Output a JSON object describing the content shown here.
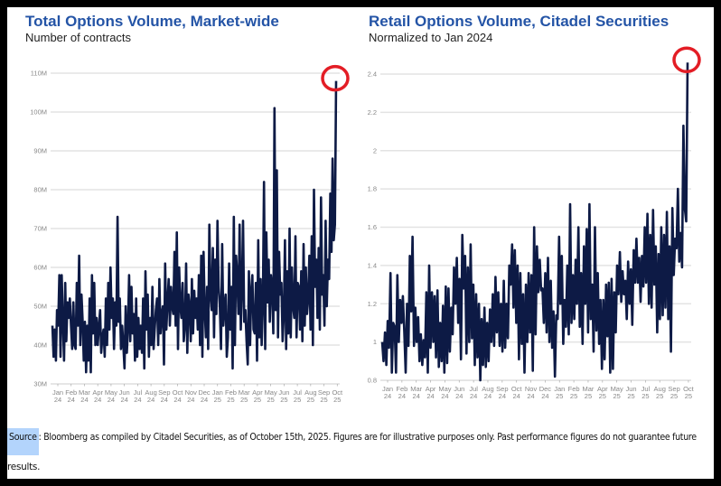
{
  "chart_data": [
    {
      "type": "line",
      "title": "Total Options Volume, Market-wide",
      "subtitle": "Number of contracts",
      "xlabel": "",
      "ylabel": "",
      "ylim": [
        30,
        110
      ],
      "y_unit": "M",
      "y_ticks": [
        "30M",
        "40M",
        "50M",
        "60M",
        "70M",
        "80M",
        "90M",
        "100M",
        "110M"
      ],
      "x_ticks": [
        [
          "Jan",
          "24"
        ],
        [
          "Feb",
          "24"
        ],
        [
          "Mar",
          "24"
        ],
        [
          "Apr",
          "24"
        ],
        [
          "May",
          "24"
        ],
        [
          "Jun",
          "24"
        ],
        [
          "Jul",
          "24"
        ],
        [
          "Aug",
          "24"
        ],
        [
          "Sep",
          "24"
        ],
        [
          "Oct",
          "24"
        ],
        [
          "Nov",
          "24"
        ],
        [
          "Dec",
          "24"
        ],
        [
          "Jan",
          "25"
        ],
        [
          "Feb",
          "25"
        ],
        [
          "Mar",
          "25"
        ],
        [
          "Apr",
          "25"
        ],
        [
          "May",
          "25"
        ],
        [
          "Jun",
          "25"
        ],
        [
          "Jul",
          "25"
        ],
        [
          "Aug",
          "25"
        ],
        [
          "Sep",
          "25"
        ],
        [
          "Oct",
          "25"
        ]
      ],
      "grid": true,
      "highlight": "circle around final peak (Oct 25)",
      "series": [
        {
          "name": "Total Options Volume",
          "color": "#0d1a45",
          "values": [
            45,
            37,
            44,
            36,
            49,
            45,
            58,
            37,
            58,
            46,
            36,
            56,
            41,
            51,
            47,
            52,
            45,
            39,
            51,
            40,
            39,
            56,
            45,
            63,
            40,
            53,
            46,
            36,
            46,
            33,
            45,
            36,
            52,
            33,
            58,
            43,
            56,
            40,
            47,
            40,
            45,
            49,
            38,
            42,
            44,
            37,
            52,
            40,
            56,
            44,
            60,
            47,
            52,
            39,
            51,
            45,
            73,
            46,
            52,
            39,
            45,
            40,
            34,
            50,
            38,
            44,
            58,
            41,
            55,
            43,
            48,
            36,
            52,
            37,
            47,
            39,
            45,
            38,
            52,
            34,
            59,
            44,
            53,
            37,
            47,
            40,
            55,
            39,
            44,
            49,
            52,
            40,
            57,
            43,
            48,
            50,
            35,
            61,
            44,
            51,
            57,
            45,
            55,
            50,
            48,
            64,
            45,
            69,
            39,
            60,
            50,
            47,
            56,
            41,
            45,
            61,
            38,
            53,
            50,
            41,
            57,
            43,
            54,
            47,
            52,
            44,
            58,
            40,
            63,
            37,
            64,
            49,
            42,
            55,
            39,
            71,
            53,
            49,
            65,
            42,
            62,
            48,
            72,
            55,
            50,
            39,
            66,
            45,
            50,
            53,
            37,
            42,
            61,
            44,
            55,
            34,
            73,
            40,
            63,
            58,
            48,
            71,
            44,
            55,
            72,
            46,
            49,
            41,
            35,
            59,
            40,
            54,
            58,
            44,
            43,
            56,
            36,
            67,
            42,
            57,
            40,
            50,
            82,
            39,
            69,
            51,
            62,
            46,
            58,
            55,
            43,
            101,
            49,
            85,
            42,
            64,
            53,
            56,
            41,
            48,
            67,
            39,
            59,
            43,
            70,
            42,
            60,
            50,
            47,
            68,
            42,
            56,
            55,
            44,
            59,
            41,
            66,
            45,
            60,
            48,
            52,
            63,
            44,
            68,
            40,
            80,
            55,
            62,
            47,
            65,
            44,
            78,
            53,
            58,
            45,
            72,
            50,
            62,
            57,
            79,
            64,
            88,
            67,
            71,
            108
          ]
        }
      ]
    },
    {
      "type": "line",
      "title": "Retail Options Volume, Citadel Securities",
      "subtitle": "Normalized to Jan 2024",
      "xlabel": "",
      "ylabel": "",
      "ylim": [
        0.8,
        2.4
      ],
      "y_ticks": [
        "0.8",
        "1",
        "1.2",
        "1.4",
        "1.6",
        "1.8",
        "2",
        "2.2",
        "2.4"
      ],
      "x_ticks": [
        [
          "Jan",
          "24"
        ],
        [
          "Feb",
          "24"
        ],
        [
          "Mar",
          "24"
        ],
        [
          "Apr",
          "24"
        ],
        [
          "May",
          "24"
        ],
        [
          "Jun",
          "24"
        ],
        [
          "Jul",
          "24"
        ],
        [
          "Aug",
          "24"
        ],
        [
          "Sep",
          "24"
        ],
        [
          "Oct",
          "24"
        ],
        [
          "Nov",
          "24"
        ],
        [
          "Dec",
          "24"
        ],
        [
          "Jan",
          "25"
        ],
        [
          "Feb",
          "25"
        ],
        [
          "Mar",
          "25"
        ],
        [
          "Apr",
          "25"
        ],
        [
          "May",
          "25"
        ],
        [
          "Jun",
          "25"
        ],
        [
          "Jul",
          "25"
        ],
        [
          "Aug",
          "25"
        ],
        [
          "Sep",
          "25"
        ],
        [
          "Oct",
          "25"
        ]
      ],
      "grid": true,
      "highlight": "circle around final peak (Oct 25)",
      "series": [
        {
          "name": "Retail Options Volume (normalized)",
          "color": "#0d1a45",
          "values": [
            1.0,
            0.9,
            1.05,
            0.88,
            1.11,
            0.97,
            1.36,
            0.84,
            1.1,
            1.08,
            0.84,
            1.35,
            1.0,
            1.22,
            1.1,
            1.24,
            1.05,
            0.84,
            1.2,
            0.98,
            1.45,
            1.16,
            1.55,
            0.98,
            1.18,
            1.0,
            1.13,
            0.9,
            1.04,
            0.88,
            1.01,
            0.92,
            1.26,
            0.84,
            1.4,
            0.97,
            1.26,
            1.0,
            1.24,
            0.92,
            1.27,
            0.87,
            1.1,
            0.9,
            1.19,
            0.84,
            1.29,
            0.89,
            1.28,
            0.95,
            1.18,
            1.04,
            1.39,
            1.2,
            1.44,
            1.1,
            1.33,
            0.91,
            1.56,
            1.28,
            1.45,
            0.94,
            1.39,
            1.0,
            1.51,
            1.02,
            1.3,
            0.88,
            1.25,
            0.92,
            1.2,
            0.8,
            1.12,
            0.88,
            1.18,
            0.87,
            1.1,
            0.9,
            1.17,
            1.0,
            1.25,
            0.98,
            1.34,
            1.05,
            1.26,
            0.98,
            1.2,
            0.95,
            1.32,
            0.97,
            1.2,
            1.02,
            1.4,
            1.3,
            1.51,
            1.18,
            1.48,
            1.1,
            1.4,
            0.91,
            1.36,
            0.99,
            1.25,
            0.84,
            1.3,
            1.0,
            1.36,
            1.05,
            1.35,
            0.85,
            1.6,
            1.04,
            1.5,
            1.26,
            1.43,
            1.27,
            1.28,
            1.1,
            1.36,
            1.05,
            1.44,
            1.0,
            1.32,
            0.97,
            1.16,
            0.82,
            1.14,
            1.12,
            1.55,
            1.2,
            1.45,
            0.99,
            1.22,
            1.08,
            1.4,
            1.04,
            1.72,
            1.1,
            1.35,
            1.12,
            1.43,
            1.2,
            1.6,
            1.08,
            1.36,
            0.99,
            1.5,
            1.2,
            1.59,
            1.05,
            1.72,
            1.12,
            1.3,
            0.95,
            1.6,
            1.06,
            1.36,
            0.99,
            1.22,
            0.86,
            1.22,
            0.91,
            1.3,
            1.03,
            1.31,
            0.84,
            1.33,
            0.86,
            1.26,
            1.05,
            1.4,
            1.25,
            1.47,
            1.21,
            1.37,
            1.25,
            1.32,
            1.12,
            1.42,
            1.2,
            1.38,
            1.09,
            1.48,
            1.31,
            1.54,
            1.31,
            1.44,
            1.21,
            1.45,
            1.29,
            1.6,
            1.31,
            1.67,
            1.2,
            1.56,
            1.18,
            1.69,
            1.3,
            1.5,
            1.05,
            1.46,
            1.12,
            1.6,
            1.14,
            1.56,
            1.18,
            1.68,
            1.12,
            1.5,
            0.95,
            1.7,
            1.35,
            1.54,
            1.49,
            1.8,
            1.42,
            1.57,
            1.39,
            2.13,
            1.7,
            1.63,
            2.46
          ]
        }
      ]
    }
  ],
  "footer": {
    "source_label": "Source",
    "source_text": ": Bloomberg as compiled by Citadel Securities, as of October 15th, 2025. Figures are for illustrative purposes only. Past performance figures do not guarantee future",
    "source_text_cont": "results."
  }
}
